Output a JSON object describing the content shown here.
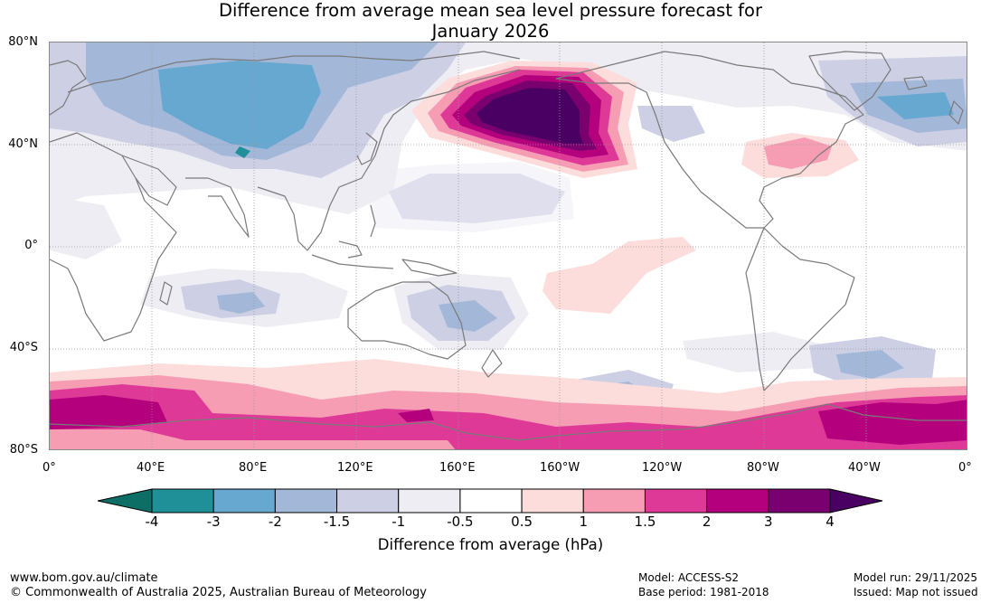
{
  "title": {
    "line1": "Difference from average mean sea level pressure forecast for",
    "line2": "January 2026"
  },
  "map": {
    "lat_labels": [
      "80°N",
      "40°N",
      "0°",
      "40°S",
      "80°S"
    ],
    "lon_labels": [
      "0°",
      "40°E",
      "80°E",
      "120°E",
      "160°E",
      "160°W",
      "120°W",
      "80°W",
      "40°W",
      "0°"
    ],
    "lon_range": [
      0,
      360
    ],
    "lat_range": [
      -80,
      80
    ]
  },
  "colorbar": {
    "title": "Difference from average (hPa)",
    "ticks": [
      "-4",
      "-3",
      "-2",
      "-1.5",
      "-1",
      "-0.5",
      "0.5",
      "1",
      "1.5",
      "2",
      "3",
      "4"
    ],
    "colors": [
      "#0c6e64",
      "#1f9098",
      "#66a8d0",
      "#a3b8d8",
      "#cdcfe5",
      "#efedf4",
      "#ffffff",
      "#fddcdc",
      "#f69db4",
      "#df3998",
      "#b4007c",
      "#7a0070",
      "#4a0063"
    ]
  },
  "footer": {
    "url": "www.bom.gov.au/climate",
    "copyright": "© Commonwealth of Australia 2025, Australian Bureau of Meteorology",
    "model": "Model: ACCESS-S2",
    "base_period": "Base period: 1981-2018",
    "model_run": "Model run: 29/11/2025",
    "issued": "Issued: Map not issued"
  }
}
